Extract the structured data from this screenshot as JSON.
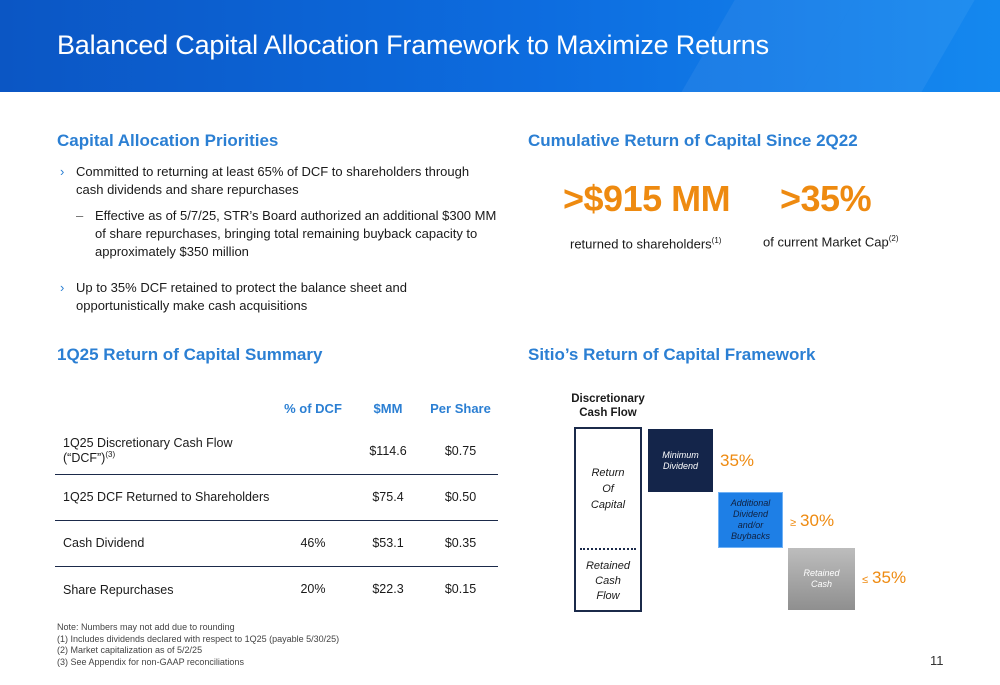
{
  "header": {
    "title": "Balanced Capital Allocation Framework to Maximize Returns"
  },
  "priorities": {
    "title": "Capital Allocation Priorities",
    "bullet1": "Committed to returning at least 65% of DCF to shareholders through cash dividends and share repurchases",
    "sub1": "Effective as of 5/7/25, STR’s Board authorized an additional $300 MM of share repurchases, bringing total remaining buyback capacity to approximately $350 million",
    "bullet2": "Up to 35% DCF retained to protect the balance sheet and opportunistically make cash acquisitions"
  },
  "cumulative": {
    "title": "Cumulative Return of Capital Since 2Q22",
    "amount": ">$915 MM",
    "amount_label": "returned to shareholders",
    "amount_note": "(1)",
    "pct": ">35%",
    "pct_label": "of current Market Cap",
    "pct_note": "(2)"
  },
  "summary": {
    "title": "1Q25 Return of Capital Summary",
    "headers": [
      "",
      "% of DCF",
      "$MM",
      "Per Share"
    ],
    "rows": [
      {
        "label": "1Q25 Discretionary Cash Flow (“DCF”)",
        "note": "(3)",
        "pct": "",
        "mm": "$114.6",
        "ps": "$0.75"
      },
      {
        "label": "1Q25 DCF Returned to Shareholders",
        "note": "",
        "pct": "",
        "mm": "$75.4",
        "ps": "$0.50"
      },
      {
        "label": "Cash Dividend",
        "note": "",
        "pct": "46%",
        "mm": "$53.1",
        "ps": "$0.35"
      },
      {
        "label": "Share Repurchases",
        "note": "",
        "pct": "20%",
        "mm": "$22.3",
        "ps": "$0.15"
      }
    ]
  },
  "framework": {
    "title": "Sitio’s Return of Capital Framework",
    "col_head_1": "Discretionary",
    "col_head_2": "Cash Flow",
    "roc_1": "Return",
    "roc_2": "Of",
    "roc_3": "Capital",
    "rcf_1": "Retained",
    "rcf_2": "Cash",
    "rcf_3": "Flow",
    "box1_1": "Minimum",
    "box1_2": "Dividend",
    "box2_1": "Additional",
    "box2_2": "Dividend",
    "box2_3": "and/or",
    "box2_4": "Buybacks",
    "box3_1": "Retained",
    "box3_2": "Cash",
    "pct1": "35%",
    "pct2_op": "≥",
    "pct2": "30%",
    "pct3_op": "≤",
    "pct3": "35%"
  },
  "notes": [
    "Note: Numbers may not add due to rounding",
    "(1) Includes dividends declared with respect to 1Q25 (payable 5/30/25)",
    "(2) Market capitalization as of 5/2/25",
    "(3) See Appendix for non-GAAP reconciliations"
  ],
  "page_number": "11",
  "colors": {
    "banner": "#0d6de0",
    "accent_blue": "#2b7fd3",
    "accent_orange": "#ee8a10",
    "navy": "#14254a"
  }
}
